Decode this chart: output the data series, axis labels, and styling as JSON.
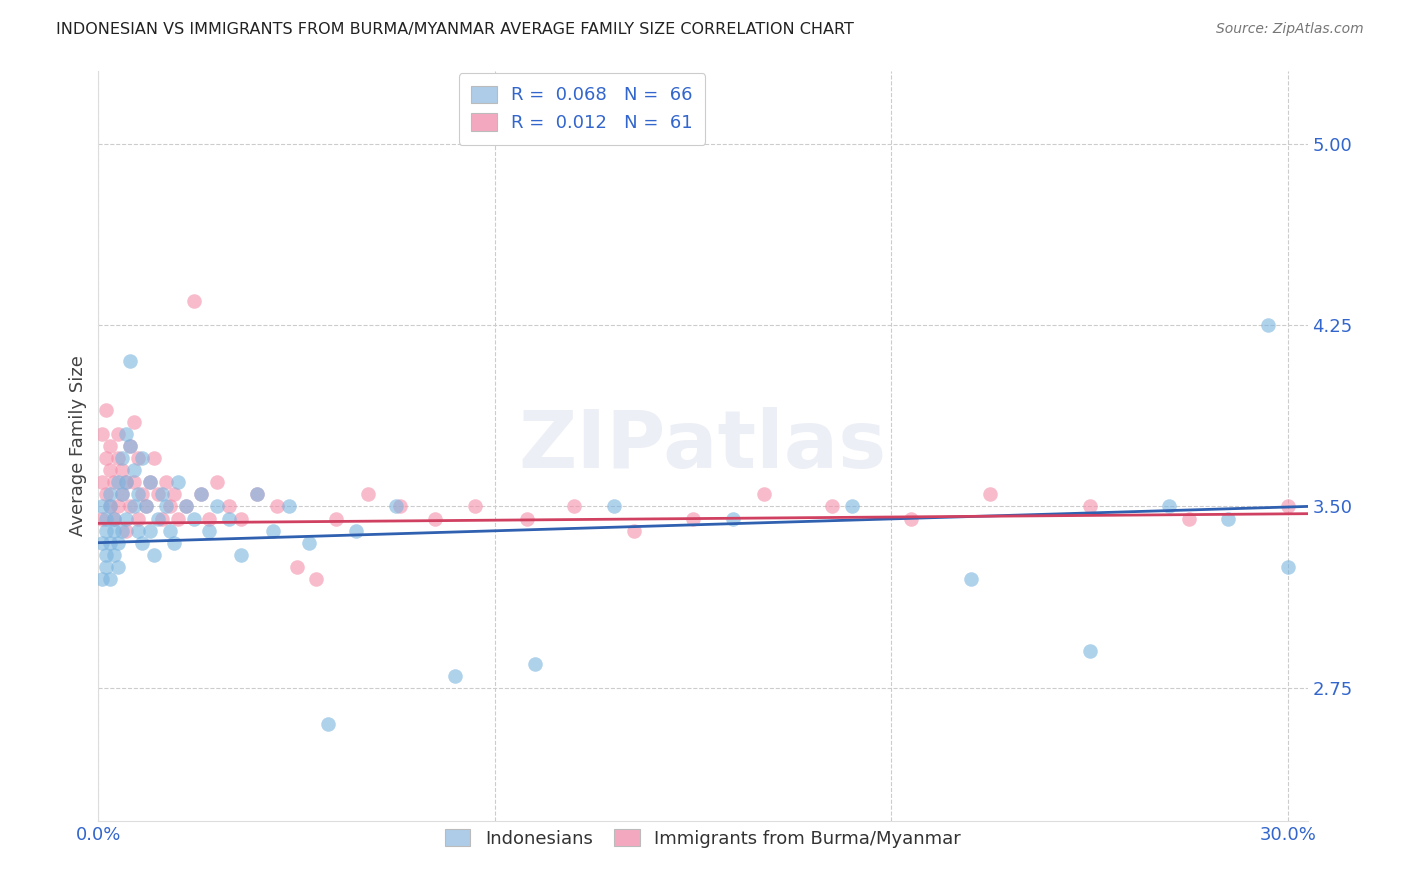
{
  "title": "INDONESIAN VS IMMIGRANTS FROM BURMA/MYANMAR AVERAGE FAMILY SIZE CORRELATION CHART",
  "source": "Source: ZipAtlas.com",
  "ylabel": "Average Family Size",
  "yticks": [
    2.75,
    3.5,
    4.25,
    5.0
  ],
  "ylim": [
    2.2,
    5.3
  ],
  "xlim": [
    0.0,
    0.305
  ],
  "blue_color": "#7ab4df",
  "pink_color": "#f48faa",
  "blue_line_color": "#3060b0",
  "pink_line_color": "#d04060",
  "blue_legend_color": "#aecce8",
  "pink_legend_color": "#f4a8bf",
  "watermark": "ZIPatlas",
  "title_color": "#222222",
  "source_color": "#777777",
  "axis_tick_color": "#3366cc",
  "ylabel_color": "#444444",
  "indonesians_x": [
    0.001,
    0.001,
    0.001,
    0.002,
    0.002,
    0.002,
    0.002,
    0.003,
    0.003,
    0.003,
    0.003,
    0.004,
    0.004,
    0.004,
    0.005,
    0.005,
    0.005,
    0.006,
    0.006,
    0.006,
    0.007,
    0.007,
    0.007,
    0.008,
    0.008,
    0.009,
    0.009,
    0.01,
    0.01,
    0.011,
    0.011,
    0.012,
    0.013,
    0.013,
    0.014,
    0.015,
    0.016,
    0.017,
    0.018,
    0.019,
    0.02,
    0.022,
    0.024,
    0.026,
    0.028,
    0.03,
    0.033,
    0.036,
    0.04,
    0.044,
    0.048,
    0.053,
    0.058,
    0.065,
    0.075,
    0.09,
    0.11,
    0.13,
    0.16,
    0.19,
    0.22,
    0.25,
    0.27,
    0.285,
    0.295,
    0.3
  ],
  "indonesians_y": [
    3.35,
    3.2,
    3.5,
    3.4,
    3.25,
    3.45,
    3.3,
    3.5,
    3.35,
    3.2,
    3.55,
    3.4,
    3.3,
    3.45,
    3.35,
    3.6,
    3.25,
    3.7,
    3.4,
    3.55,
    3.8,
    3.6,
    3.45,
    4.1,
    3.75,
    3.65,
    3.5,
    3.4,
    3.55,
    3.7,
    3.35,
    3.5,
    3.4,
    3.6,
    3.3,
    3.45,
    3.55,
    3.5,
    3.4,
    3.35,
    3.6,
    3.5,
    3.45,
    3.55,
    3.4,
    3.5,
    3.45,
    3.3,
    3.55,
    3.4,
    3.5,
    3.35,
    2.6,
    3.4,
    3.5,
    2.8,
    2.85,
    3.5,
    3.45,
    3.5,
    3.2,
    2.9,
    3.5,
    3.45,
    4.25,
    3.25
  ],
  "burma_x": [
    0.001,
    0.001,
    0.001,
    0.002,
    0.002,
    0.002,
    0.003,
    0.003,
    0.003,
    0.004,
    0.004,
    0.005,
    0.005,
    0.005,
    0.006,
    0.006,
    0.007,
    0.007,
    0.008,
    0.008,
    0.009,
    0.009,
    0.01,
    0.01,
    0.011,
    0.012,
    0.013,
    0.014,
    0.015,
    0.016,
    0.017,
    0.018,
    0.019,
    0.02,
    0.022,
    0.024,
    0.026,
    0.028,
    0.03,
    0.033,
    0.036,
    0.04,
    0.045,
    0.05,
    0.055,
    0.06,
    0.068,
    0.076,
    0.085,
    0.095,
    0.108,
    0.12,
    0.135,
    0.15,
    0.168,
    0.185,
    0.205,
    0.225,
    0.25,
    0.275,
    0.3
  ],
  "burma_y": [
    3.6,
    3.8,
    3.45,
    3.7,
    3.55,
    3.9,
    3.65,
    3.5,
    3.75,
    3.45,
    3.6,
    3.8,
    3.5,
    3.7,
    3.55,
    3.65,
    3.4,
    3.6,
    3.75,
    3.5,
    3.85,
    3.6,
    3.7,
    3.45,
    3.55,
    3.5,
    3.6,
    3.7,
    3.55,
    3.45,
    3.6,
    3.5,
    3.55,
    3.45,
    3.5,
    4.35,
    3.55,
    3.45,
    3.6,
    3.5,
    3.45,
    3.55,
    3.5,
    3.25,
    3.2,
    3.45,
    3.55,
    3.5,
    3.45,
    3.5,
    3.45,
    3.5,
    3.4,
    3.45,
    3.55,
    3.5,
    3.45,
    3.55,
    3.5,
    3.45,
    3.5
  ]
}
